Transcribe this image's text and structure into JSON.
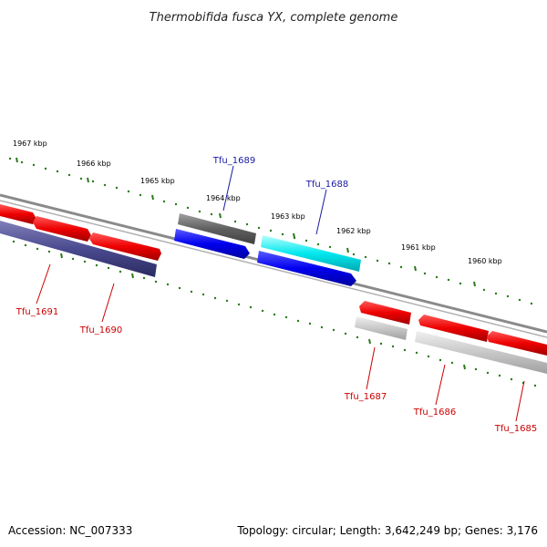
{
  "title": "Thermobifida fusca YX, complete genome",
  "accession": "Accession: NC_007333",
  "summary": "Topology: circular; Length: 3,642,249 bp; Genes: 3,176",
  "colors": {
    "forward_label": "#1a1aa0",
    "reverse_label": "#cc0000",
    "ruler": "#2a7a1a",
    "backbone": "#888888"
  },
  "kbp_labels": [
    "1967 kbp",
    "1966 kbp",
    "1965 kbp",
    "1964 kbp",
    "1963 kbp",
    "1962 kbp",
    "1961 kbp",
    "1960 kbp"
  ],
  "genes": [
    {
      "name": "Tfu_1689",
      "label": "Tfu_1689",
      "strand": "forward",
      "color": "#1a1ad0"
    },
    {
      "name": "Tfu_1688",
      "label": "Tfu_1688",
      "strand": "forward",
      "color": "#1a1ad0"
    },
    {
      "name": "Tfu_1691",
      "label": "Tfu_1691",
      "strand": "reverse",
      "color": "#cc0000"
    },
    {
      "name": "Tfu_1690",
      "label": "Tfu_1690",
      "strand": "reverse",
      "color": "#cc0000"
    },
    {
      "name": "Tfu_1687",
      "label": "Tfu_1687",
      "strand": "reverse",
      "color": "#cc0000"
    },
    {
      "name": "Tfu_1686",
      "label": "Tfu_1686",
      "strand": "reverse",
      "color": "#cc0000"
    },
    {
      "name": "Tfu_1685",
      "label": "Tfu_1685",
      "strand": "reverse",
      "color": "#cc0000"
    }
  ]
}
